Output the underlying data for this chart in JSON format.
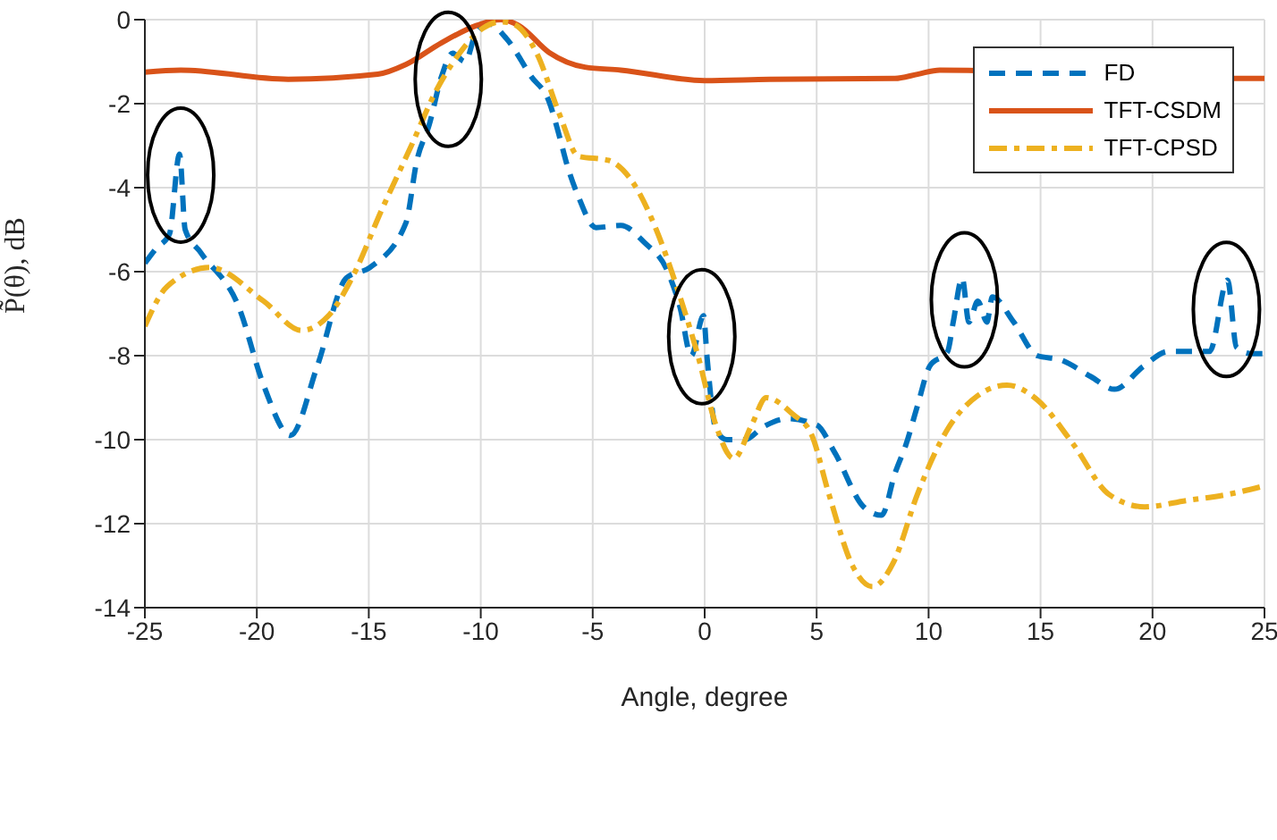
{
  "chart_data": {
    "type": "line",
    "xlabel": "Angle, degree",
    "ylabel": "P̃(θ), dB",
    "xlim": [
      -25,
      25
    ],
    "xticks": [
      -25,
      -20,
      -15,
      -10,
      -5,
      0,
      5,
      10,
      15,
      20,
      25
    ],
    "ylim": [
      -14,
      0
    ],
    "yticks": [
      -14,
      -12,
      -10,
      -8,
      -6,
      -4,
      -2,
      0
    ],
    "grid": true,
    "legend": "top right",
    "marker": "none",
    "series": [
      {
        "name": "FD",
        "color": "#0072bd",
        "line_style": "dashed",
        "x": [
          -25,
          -24.5,
          -23.9,
          -23.45,
          -23.2,
          -22.5,
          -20.8,
          -19.7,
          -18.5,
          -17.3,
          -16,
          -14.95,
          -13.35,
          -12.85,
          -12.3,
          -11.75,
          -11.25,
          -10.7,
          -10.2,
          -9.65,
          -8.85,
          -7.75,
          -6.95,
          -6.45,
          -6.15,
          -5.65,
          -4.85,
          -3.75,
          -2.7,
          -1.65,
          -1.1,
          -0.6,
          -0.05,
          0.1,
          0.5,
          1,
          1.8,
          2.6,
          3.7,
          5,
          5.8,
          7.1,
          7.9,
          8.5,
          9,
          9.5,
          10.05,
          10.85,
          11.1,
          11.5,
          11.8,
          12.2,
          12.6,
          12.85,
          13.8,
          14.85,
          15.9,
          17.25,
          18.3,
          19.6,
          20.7,
          21.75,
          22.55,
          23.35,
          23.75,
          24.4,
          25
        ],
        "values": [
          -5.8,
          -5.45,
          -5.1,
          -3.2,
          -5,
          -5.55,
          -6.85,
          -8.7,
          -9.9,
          -8.25,
          -6.15,
          -5.9,
          -4.85,
          -3.35,
          -2.5,
          -1.35,
          -0.8,
          -1,
          -0.3,
          -0.1,
          -0.45,
          -1.35,
          -1.95,
          -2.85,
          -3.45,
          -4.2,
          -4.95,
          -4.9,
          -5.3,
          -6,
          -6.85,
          -8,
          -7.05,
          -8,
          -9.75,
          -10,
          -10,
          -9.7,
          -9.5,
          -9.65,
          -10.3,
          -11.6,
          -11.8,
          -10.8,
          -10.1,
          -9.2,
          -8.25,
          -7.9,
          -7.2,
          -6.15,
          -7.2,
          -6.7,
          -7.2,
          -6.6,
          -7.2,
          -8,
          -8.1,
          -8.5,
          -8.8,
          -8.25,
          -7.9,
          -7.9,
          -7.9,
          -6.2,
          -7.8,
          -7.95,
          -7.95
        ]
      },
      {
        "name": "TFT-CSDM",
        "color": "#d95319",
        "line_style": "solid",
        "x": [
          -25,
          -23.4,
          -18.6,
          -14.6,
          -13.35,
          -11.75,
          -10.2,
          -9.1,
          -8.3,
          -6.95,
          -5.35,
          -3.75,
          0,
          2.9,
          8.5,
          9.5,
          10.5,
          24,
          25
        ],
        "values": [
          -1.25,
          -1.2,
          -1.42,
          -1.3,
          -1.07,
          -0.55,
          -0.14,
          0,
          -0.14,
          -0.78,
          -1.13,
          -1.2,
          -1.45,
          -1.42,
          -1.4,
          -1.3,
          -1.2,
          -1.4,
          -1.4
        ]
      },
      {
        "name": "TFT-CPSD",
        "color": "#edb120",
        "line_style": "dashdot",
        "x": [
          -25,
          -24,
          -22.1,
          -19.7,
          -18,
          -16.8,
          -15.75,
          -14.4,
          -13.1,
          -12,
          -10.95,
          -9.9,
          -9.1,
          -8.55,
          -7.5,
          -6.45,
          -5.65,
          -4.3,
          -3,
          -2.2,
          -1.1,
          -0.3,
          0.5,
          1.3,
          2.1,
          2.75,
          3.95,
          4.75,
          5.55,
          6.6,
          7.5,
          8.45,
          9.5,
          10.85,
          12.2,
          13.5,
          14.85,
          16.45,
          18.05,
          19.65,
          21.5,
          23.4,
          25
        ],
        "values": [
          -7.3,
          -6.35,
          -5.9,
          -6.7,
          -7.4,
          -7.05,
          -6.15,
          -4.5,
          -3,
          -1.7,
          -0.8,
          -0.2,
          -0.05,
          -0.1,
          -0.8,
          -2.3,
          -3.25,
          -3.35,
          -4.05,
          -4.95,
          -6.6,
          -8,
          -9.65,
          -10.45,
          -9.65,
          -9,
          -9.4,
          -9.85,
          -11.3,
          -13,
          -13.5,
          -12.9,
          -11.3,
          -9.75,
          -8.95,
          -8.7,
          -9.05,
          -10.1,
          -11.3,
          -11.6,
          -11.45,
          -11.3,
          -11.1
        ]
      }
    ]
  }
}
